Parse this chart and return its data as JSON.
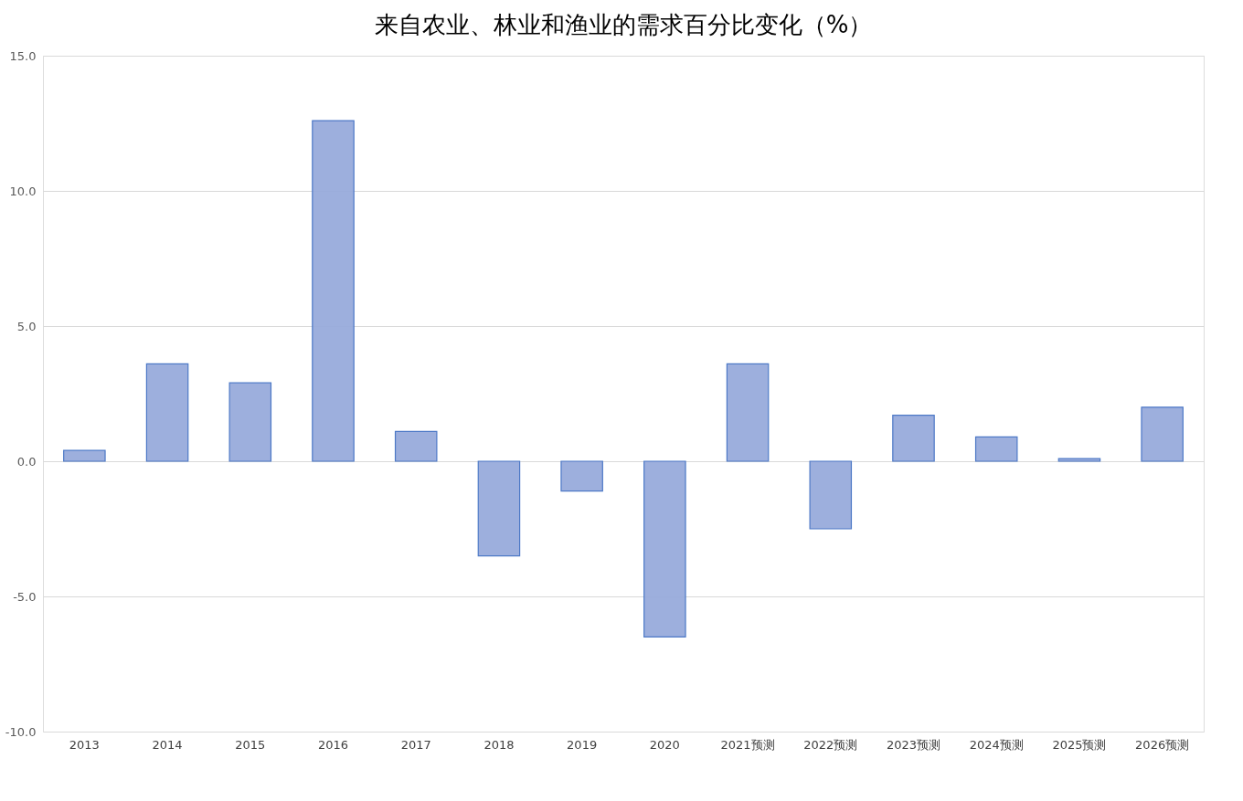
{
  "chart_data": {
    "type": "bar",
    "title": "来自农业、林业和渔业的需求百分比变化（%）",
    "categories": [
      "2013",
      "2014",
      "2015",
      "2016",
      "2017",
      "2018",
      "2019",
      "2020",
      "2021预测",
      "2022预测",
      "2023预测",
      "2024预测",
      "2025预测",
      "2026预测"
    ],
    "values": [
      0.4,
      3.6,
      2.9,
      12.6,
      1.1,
      -3.5,
      -1.1,
      -6.5,
      3.6,
      -2.5,
      1.7,
      0.9,
      0.1,
      2.0
    ],
    "color": "#98abdc",
    "ylim": [
      -10,
      15
    ],
    "yticks": [
      {
        "value": -10,
        "label": "-10.0"
      },
      {
        "value": -5,
        "label": "-5.0"
      },
      {
        "value": 0,
        "label": "0.0"
      },
      {
        "value": 5,
        "label": "5.0"
      },
      {
        "value": 10,
        "label": "10.0"
      },
      {
        "value": 15,
        "label": "15.0"
      }
    ],
    "grid": "y"
  }
}
